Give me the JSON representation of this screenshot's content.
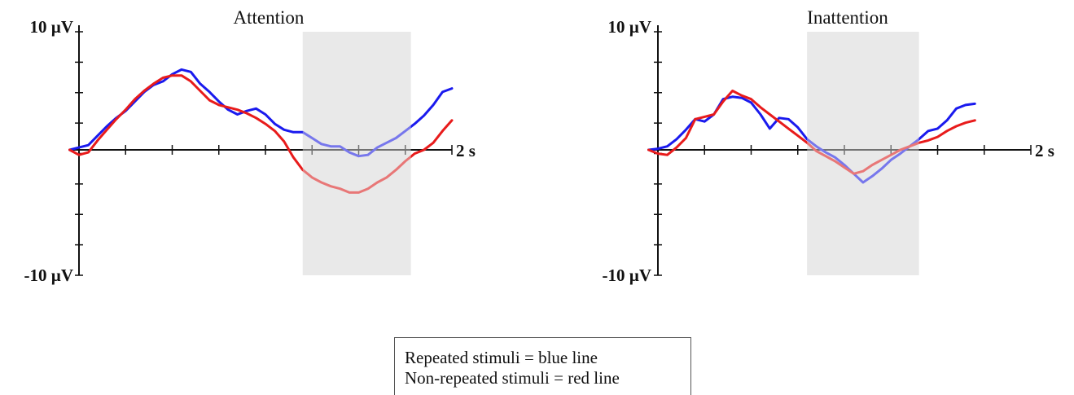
{
  "chart_data": [
    {
      "type": "line",
      "title": "Attention",
      "y_top_label": "10 µV",
      "y_bottom_label": "-10 µV",
      "x_end_label": "2 s",
      "ylim": [
        -10,
        10
      ],
      "xlim": [
        0,
        2
      ],
      "shaded_x": [
        1.2,
        1.78
      ],
      "series": [
        {
          "color": "#1a1aee",
          "x": [
            -0.05,
            0,
            0.05,
            0.1,
            0.15,
            0.2,
            0.25,
            0.3,
            0.35,
            0.4,
            0.45,
            0.5,
            0.55,
            0.6,
            0.65,
            0.7,
            0.75,
            0.8,
            0.85,
            0.9,
            0.95,
            1.0,
            1.05,
            1.1,
            1.15,
            1.2,
            1.25,
            1.3,
            1.35,
            1.4,
            1.45,
            1.5,
            1.55,
            1.6,
            1.65,
            1.7,
            1.75,
            1.8,
            1.85,
            1.9,
            1.95,
            2.0
          ],
          "y": [
            0,
            0.2,
            0.4,
            1.2,
            2.0,
            2.7,
            3.3,
            4.1,
            4.9,
            5.5,
            5.8,
            6.4,
            6.8,
            6.6,
            5.6,
            4.9,
            4.1,
            3.4,
            3.0,
            3.3,
            3.5,
            3.0,
            2.2,
            1.7,
            1.5,
            1.5,
            1.0,
            0.5,
            0.3,
            0.3,
            -0.2,
            -0.5,
            -0.4,
            0.2,
            0.6,
            1.0,
            1.6,
            2.2,
            2.9,
            3.8,
            4.9,
            5.2
          ]
        },
        {
          "color": "#e81b1b",
          "x": [
            -0.05,
            0,
            0.05,
            0.1,
            0.15,
            0.2,
            0.25,
            0.3,
            0.35,
            0.4,
            0.45,
            0.5,
            0.55,
            0.6,
            0.65,
            0.7,
            0.75,
            0.8,
            0.85,
            0.9,
            0.95,
            1.0,
            1.05,
            1.1,
            1.15,
            1.2,
            1.25,
            1.3,
            1.35,
            1.4,
            1.45,
            1.5,
            1.55,
            1.6,
            1.65,
            1.7,
            1.75,
            1.8,
            1.85,
            1.9,
            1.95,
            2.0
          ],
          "y": [
            0,
            -0.4,
            -0.2,
            0.8,
            1.7,
            2.6,
            3.4,
            4.3,
            5.0,
            5.6,
            6.1,
            6.3,
            6.3,
            5.8,
            5.0,
            4.2,
            3.8,
            3.6,
            3.4,
            3.1,
            2.7,
            2.2,
            1.6,
            0.7,
            -0.6,
            -1.6,
            -2.2,
            -2.6,
            -2.9,
            -3.1,
            -3.4,
            -3.4,
            -3.1,
            -2.6,
            -2.2,
            -1.6,
            -0.9,
            -0.3,
            0.0,
            0.6,
            1.6,
            2.5
          ]
        }
      ]
    },
    {
      "type": "line",
      "title": "Inattention",
      "y_top_label": "10 µV",
      "y_bottom_label": "-10 µV",
      "x_end_label": "2 s",
      "ylim": [
        -10,
        10
      ],
      "xlim": [
        0,
        2
      ],
      "shaded_x": [
        0.8,
        1.4
      ],
      "series": [
        {
          "color": "#1a1aee",
          "x": [
            -0.05,
            0,
            0.05,
            0.1,
            0.15,
            0.2,
            0.25,
            0.3,
            0.35,
            0.4,
            0.45,
            0.5,
            0.55,
            0.6,
            0.65,
            0.7,
            0.75,
            0.8,
            0.85,
            0.9,
            0.95,
            1.0,
            1.05,
            1.1,
            1.15,
            1.2,
            1.25,
            1.3,
            1.35,
            1.4,
            1.45,
            1.5,
            1.55,
            1.6,
            1.65,
            1.7
          ],
          "y": [
            0,
            0.1,
            0.3,
            0.9,
            1.7,
            2.6,
            2.4,
            3.0,
            4.3,
            4.5,
            4.4,
            4.0,
            3.0,
            1.8,
            2.7,
            2.6,
            1.9,
            0.9,
            0.3,
            -0.2,
            -0.6,
            -1.2,
            -1.9,
            -2.6,
            -2.1,
            -1.5,
            -0.8,
            -0.3,
            0.3,
            0.9,
            1.6,
            1.8,
            2.5,
            3.5,
            3.8,
            3.9
          ]
        },
        {
          "color": "#e81b1b",
          "x": [
            -0.05,
            0,
            0.05,
            0.1,
            0.15,
            0.2,
            0.25,
            0.3,
            0.35,
            0.4,
            0.45,
            0.5,
            0.55,
            0.6,
            0.65,
            0.7,
            0.75,
            0.8,
            0.85,
            0.9,
            0.95,
            1.0,
            1.05,
            1.1,
            1.15,
            1.2,
            1.25,
            1.3,
            1.35,
            1.4,
            1.45,
            1.5,
            1.55,
            1.6,
            1.65,
            1.7
          ],
          "y": [
            0,
            -0.3,
            -0.4,
            0.2,
            1.0,
            2.6,
            2.8,
            3.0,
            4.1,
            5.0,
            4.6,
            4.3,
            3.6,
            3.0,
            2.4,
            1.8,
            1.2,
            0.6,
            -0.1,
            -0.5,
            -0.9,
            -1.4,
            -1.9,
            -1.7,
            -1.2,
            -0.8,
            -0.4,
            0.0,
            0.3,
            0.6,
            0.8,
            1.1,
            1.6,
            2.0,
            2.3,
            2.5
          ]
        }
      ]
    }
  ],
  "legend": {
    "line1": "Repeated stimuli = blue line",
    "line2": "Non-repeated stimuli = red line"
  }
}
